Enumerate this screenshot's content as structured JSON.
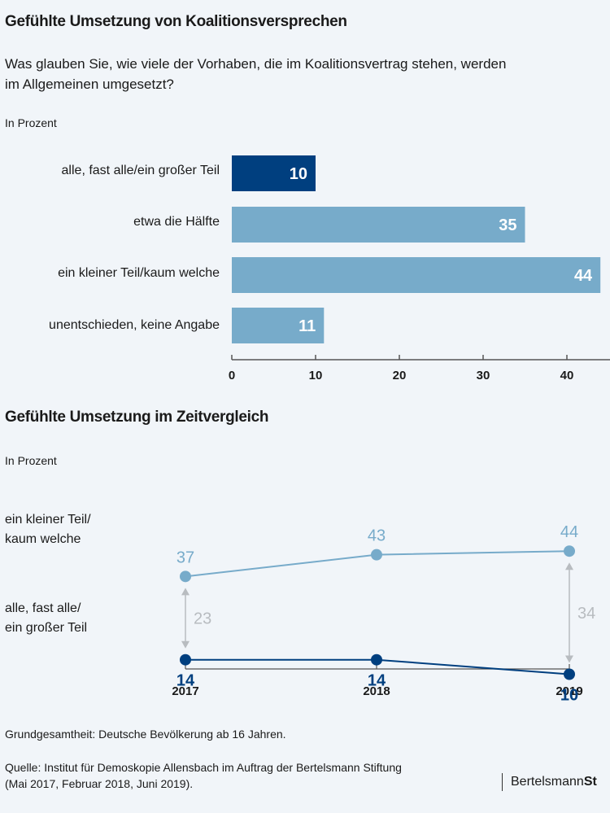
{
  "colors": {
    "dark": "#003f7f",
    "light": "#77abca",
    "gray": "#b8bcc0",
    "axis": "#555555",
    "background": "#f1f5f9"
  },
  "chart_data": [
    {
      "type": "bar",
      "orientation": "horizontal",
      "title": "Gefühlte Umsetzung von Koalitionsversprechen",
      "subtitle": "Was glauben Sie, wie viele der Vorhaben, die im Koalitionsvertrag stehen, werden im Allgemeinen umgesetzt?",
      "unit_label": "In Prozent",
      "categories": [
        "alle, fast alle/ein großer Teil",
        "etwa die Hälfte",
        "ein kleiner Teil/kaum welche",
        "unentschieden, keine Angabe"
      ],
      "values": [
        10,
        35,
        44,
        11
      ],
      "highlight": [
        true,
        false,
        false,
        false
      ],
      "xlim": [
        0,
        45
      ],
      "xticks": [
        0,
        10,
        20,
        30,
        40
      ],
      "xlabel": "",
      "ylabel": "",
      "grid": false
    },
    {
      "type": "line",
      "title": "Gefühlte Umsetzung im Zeitvergleich",
      "unit_label": "In Prozent",
      "x": [
        "2017",
        "2018",
        "2019"
      ],
      "series": [
        {
          "name": "ein kleiner Teil/ kaum welche",
          "name_lines": [
            "ein kleiner Teil/",
            "kaum welche"
          ],
          "values": [
            37,
            43,
            44
          ],
          "color": "light"
        },
        {
          "name": "alle, fast alle/ ein großer Teil",
          "name_lines": [
            "alle, fast alle/",
            "ein großer Teil"
          ],
          "values": [
            14,
            14,
            10
          ],
          "color": "dark"
        }
      ],
      "annotations": [
        {
          "type": "gap-arrow",
          "x": "2017",
          "label": "23"
        },
        {
          "type": "gap-arrow",
          "x": "2019",
          "label": "34"
        }
      ]
    }
  ],
  "footer": {
    "population": "Grundgesamtheit: Deutsche Bevölkerung ab 16 Jahren.",
    "source_line1": "Quelle: Institut für Demoskopie Allensbach im Auftrag der Bertelsmann Stiftung",
    "source_line2": "(Mai 2017, Februar 2018, Juni 2019).",
    "logo_regular": "Bertelsmann",
    "logo_bold": "St"
  }
}
